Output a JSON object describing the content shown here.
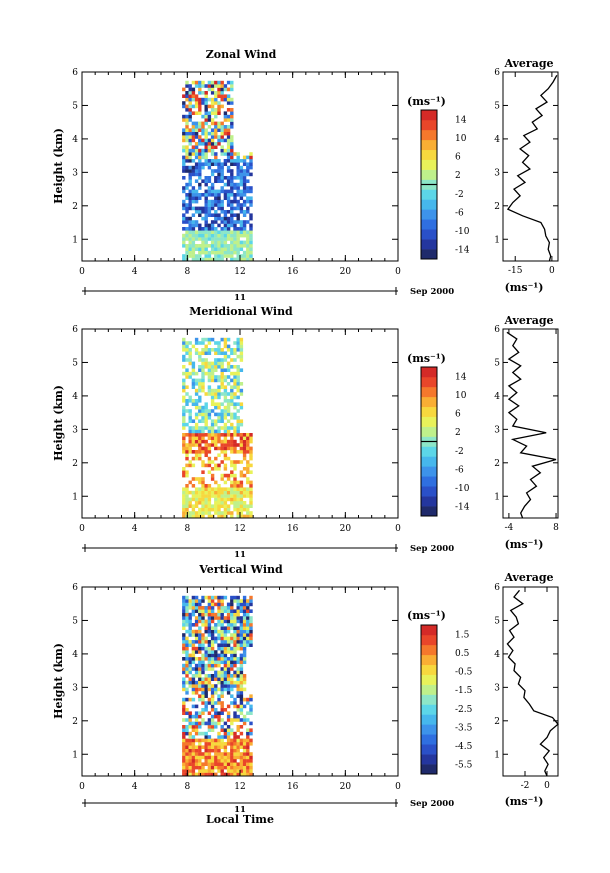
{
  "figure": {
    "x_label": "Local Time",
    "date_label": "Sep 2000",
    "day_label": "11",
    "y_label": "Height (km)",
    "profile_title": "Average",
    "unit_label": "(ms⁻¹)",
    "unit_label_colorbar": "(ms⁻¹)"
  },
  "chart_data": [
    {
      "type": "heatmap",
      "title": "Zonal Wind",
      "ylabel": "Height (km)",
      "xlabel": "",
      "x_ticks": [
        "0",
        "4",
        "8",
        "12",
        "16",
        "20",
        "0"
      ],
      "y_ticks": [
        "1",
        "2",
        "3",
        "4",
        "5",
        "6"
      ],
      "xlim": [
        0,
        24
      ],
      "ylim": [
        0.35,
        6.0
      ],
      "data_x_range": [
        7.6,
        13.0
      ],
      "colorbar": {
        "unit": "(ms⁻¹)",
        "range": [
          -16,
          16
        ],
        "ticks": [
          "14",
          "10",
          "6",
          "2",
          "-2",
          "-6",
          "-10",
          "-14"
        ]
      },
      "profile": {
        "title": "Average",
        "xlabel": "(ms⁻¹)",
        "x_ticks": [
          "-15",
          "0"
        ],
        "xlim": [
          -20,
          2.5
        ],
        "heights": [
          0.35,
          0.5,
          0.7,
          0.9,
          1.1,
          1.3,
          1.5,
          1.7,
          1.9,
          2.1,
          2.3,
          2.5,
          2.7,
          2.9,
          3.1,
          3.3,
          3.5,
          3.7,
          3.9,
          4.1,
          4.3,
          4.5,
          4.7,
          4.9,
          5.1,
          5.3,
          5.5,
          5.7,
          5.9
        ],
        "values": [
          -1.0,
          -0.5,
          -1.5,
          -1.0,
          -2.5,
          -3.0,
          -4.5,
          -12.0,
          -18.0,
          -16.0,
          -13.0,
          -15.5,
          -11.0,
          -14.0,
          -9.0,
          -12.0,
          -9.5,
          -13.0,
          -9.0,
          -11.5,
          -6.0,
          -8.0,
          -4.0,
          -6.5,
          -2.0,
          -4.5,
          -1.5,
          0.5,
          2.0
        ]
      }
    },
    {
      "type": "heatmap",
      "title": "Meridional Wind",
      "ylabel": "Height (km)",
      "xlabel": "",
      "x_ticks": [
        "0",
        "4",
        "8",
        "12",
        "16",
        "20",
        "0"
      ],
      "y_ticks": [
        "1",
        "2",
        "3",
        "4",
        "5",
        "6"
      ],
      "xlim": [
        0,
        24
      ],
      "ylim": [
        0.35,
        6.0
      ],
      "data_x_range": [
        7.6,
        13.0
      ],
      "colorbar": {
        "unit": "(ms⁻¹)",
        "range": [
          -16,
          16
        ],
        "ticks": [
          "14",
          "10",
          "6",
          "2",
          "-2",
          "-6",
          "-10",
          "-14"
        ]
      },
      "profile": {
        "title": "Average",
        "xlabel": "(ms⁻¹)",
        "x_ticks": [
          "-4",
          "8"
        ],
        "xlim": [
          -5.5,
          8.5
        ],
        "heights": [
          0.35,
          0.5,
          0.7,
          0.9,
          1.1,
          1.3,
          1.5,
          1.7,
          1.9,
          2.1,
          2.3,
          2.5,
          2.7,
          2.9,
          3.1,
          3.3,
          3.5,
          3.7,
          3.9,
          4.1,
          4.3,
          4.5,
          4.7,
          4.9,
          5.1,
          5.3,
          5.5,
          5.7,
          5.9
        ],
        "values": [
          -0.5,
          -1.0,
          0.0,
          1.5,
          0.5,
          3.0,
          1.5,
          4.0,
          2.0,
          8.0,
          -1.0,
          0.5,
          -3.0,
          5.5,
          -3.0,
          -2.0,
          -4.0,
          -1.5,
          -4.0,
          -2.0,
          -4.0,
          -1.0,
          -3.0,
          -1.0,
          -4.0,
          -1.5,
          -3.0,
          -2.0,
          -4.5
        ]
      }
    },
    {
      "type": "heatmap",
      "title": "Vertical Wind",
      "ylabel": "Height (km)",
      "xlabel": "Local Time",
      "x_ticks": [
        "0",
        "4",
        "8",
        "12",
        "16",
        "20",
        "0"
      ],
      "y_ticks": [
        "1",
        "2",
        "3",
        "4",
        "5",
        "6"
      ],
      "xlim": [
        0,
        24
      ],
      "ylim": [
        0.35,
        6.0
      ],
      "data_x_range": [
        7.6,
        13.0
      ],
      "colorbar": {
        "unit": "(ms⁻¹)",
        "range": [
          -6,
          2
        ],
        "ticks": [
          "1.5",
          "0.5",
          "-0.5",
          "-1.5",
          "-2.5",
          "-3.5",
          "-4.5",
          "-5.5"
        ]
      },
      "profile": {
        "title": "Average",
        "xlabel": "(ms⁻¹)",
        "x_ticks": [
          "-2",
          "0"
        ],
        "xlim": [
          -4.0,
          1.0
        ],
        "heights": [
          0.35,
          0.5,
          0.7,
          0.9,
          1.1,
          1.3,
          1.5,
          1.7,
          1.9,
          2.1,
          2.3,
          2.5,
          2.7,
          2.9,
          3.1,
          3.3,
          3.5,
          3.7,
          3.9,
          4.1,
          4.3,
          4.5,
          4.7,
          4.9,
          5.1,
          5.3,
          5.5,
          5.7,
          5.9
        ],
        "values": [
          0.0,
          -0.2,
          0.1,
          -0.3,
          0.2,
          -0.6,
          0.0,
          0.3,
          1.0,
          0.5,
          -1.2,
          -1.6,
          -2.1,
          -2.0,
          -2.6,
          -2.4,
          -3.0,
          -2.9,
          -3.5,
          -3.1,
          -3.6,
          -3.0,
          -3.4,
          -2.6,
          -2.8,
          -3.3,
          -2.2,
          -3.0,
          -2.5
        ]
      }
    }
  ]
}
